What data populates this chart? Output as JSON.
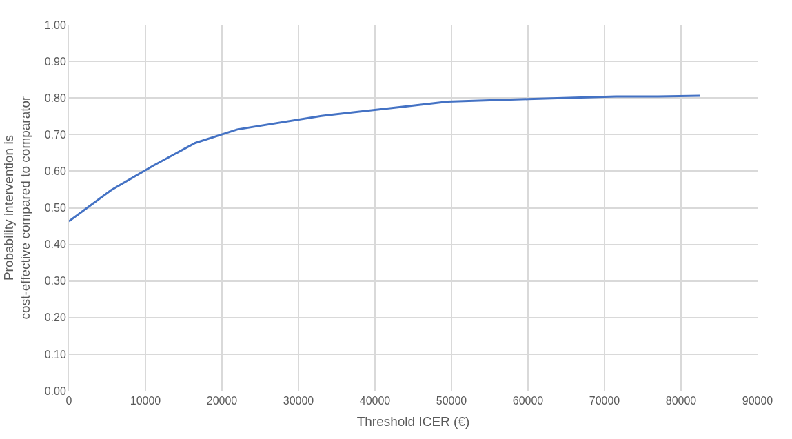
{
  "chart_data": {
    "type": "line",
    "xlabel": "Threshold ICER (€)",
    "ylabel": "Probability intervention is cost-effective compared to comparator",
    "x": [
      0,
      5500,
      11000,
      16500,
      22000,
      33000,
      44000,
      49500,
      60000,
      71500,
      77000,
      82500
    ],
    "series": [
      {
        "color": "#4472c4",
        "values": [
          0.463,
          0.548,
          0.615,
          0.677,
          0.714,
          0.751,
          0.777,
          0.79,
          0.797,
          0.804,
          0.804,
          0.806
        ]
      }
    ],
    "xlim": [
      0,
      90000
    ],
    "xticks": [
      0,
      10000,
      20000,
      30000,
      40000,
      50000,
      60000,
      70000,
      80000,
      90000
    ],
    "ylim": [
      0,
      1
    ],
    "yticks": [
      {
        "value": 0,
        "label": "0.00"
      },
      {
        "value": 0.1,
        "label": "0.10"
      },
      {
        "value": 0.2,
        "label": "0.20"
      },
      {
        "value": 0.3,
        "label": "0.30"
      },
      {
        "value": 0.4,
        "label": "0.40"
      },
      {
        "value": 0.5,
        "label": "0.50"
      },
      {
        "value": 0.6,
        "label": "0.60"
      },
      {
        "value": 0.7,
        "label": "0.70"
      },
      {
        "value": 0.8,
        "label": "0.80"
      },
      {
        "value": 0.9,
        "label": "0.90"
      },
      {
        "value": 1,
        "label": "1.00"
      }
    ],
    "grid": true,
    "marker": "none",
    "line_style": "solid"
  }
}
